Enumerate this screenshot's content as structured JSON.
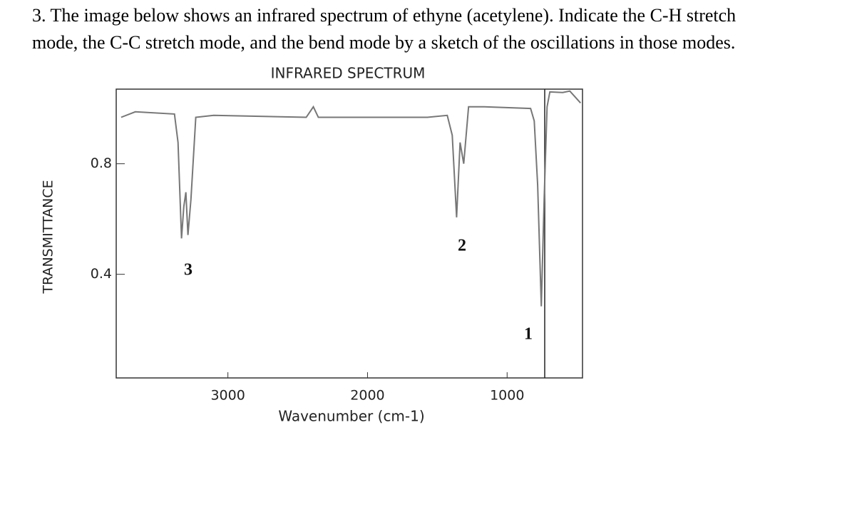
{
  "question": {
    "line1": "3. The image below shows an infrared spectrum of ethyne (acetylene). Indicate the C-H stretch",
    "line2": "mode, the C-C stretch mode, and the bend mode by a sketch of the oscillations in those modes."
  },
  "chart_data": {
    "type": "line",
    "title": "INFRARED SPECTRUM",
    "xlabel": "Wavenumber (cm-1)",
    "ylabel": "TRANSMITTANCE",
    "x": [
      3765,
      3663,
      3383,
      3357,
      3332,
      3316,
      3301,
      3286,
      3265,
      3230,
      3102,
      2439,
      2388,
      2352,
      1571,
      1429,
      1393,
      1362,
      1337,
      1311,
      1276,
      1163,
      832,
      806,
      781,
      755,
      735,
      714,
      694,
      602,
      551,
      474
    ],
    "values": [
      0.968,
      0.988,
      0.98,
      0.877,
      0.53,
      0.645,
      0.697,
      0.542,
      0.671,
      0.968,
      0.975,
      0.968,
      1.006,
      0.968,
      0.968,
      0.975,
      0.903,
      0.606,
      0.877,
      0.8,
      1.006,
      1.006,
      1.0,
      0.955,
      0.723,
      0.284,
      0.671,
      1.006,
      1.06,
      1.058,
      1.063,
      1.02
    ],
    "color": "#777777",
    "xlim": [
      3800,
      460
    ],
    "ylim": [
      0.025,
      1.07
    ],
    "xticks": [
      3000,
      2000,
      1000
    ],
    "yticks": [
      0.4,
      0.8
    ],
    "annotations": [
      "1",
      "2",
      "3"
    ]
  }
}
